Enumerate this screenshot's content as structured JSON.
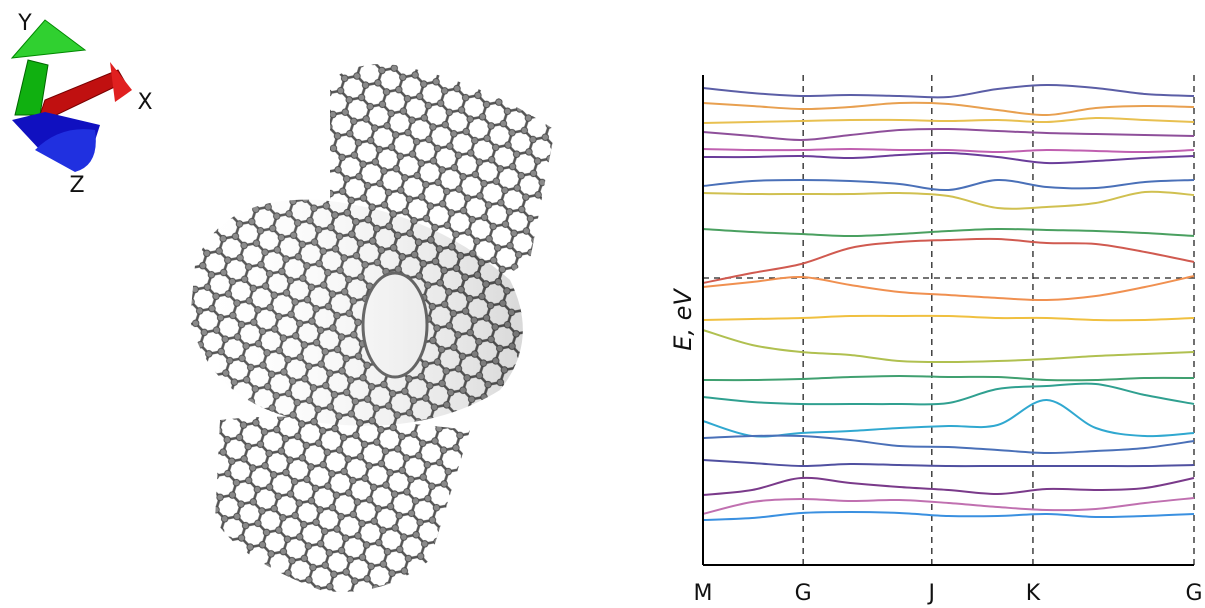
{
  "molecule": {
    "axis_labels": [
      "X",
      "Y",
      "Z"
    ]
  },
  "chart_data": {
    "type": "line",
    "y_label": "E, eV",
    "x": [
      0,
      0.1,
      0.2,
      0.3,
      0.4,
      0.5,
      0.6,
      0.7,
      0.8,
      0.9,
      1.0
    ],
    "xlim": [
      0,
      1
    ],
    "xticks": [
      {
        "value": 0,
        "label": "M"
      },
      {
        "value": 0.204,
        "label": "G"
      },
      {
        "value": 0.466,
        "label": "J"
      },
      {
        "value": 0.672,
        "label": "K"
      },
      {
        "value": 1.0,
        "label": "G"
      }
    ],
    "ylim": [
      0,
      490
    ],
    "grid": true,
    "hline": 287,
    "series": [
      {
        "color": "#5b5ea6",
        "values": [
          477,
          472,
          469,
          470,
          469,
          468,
          476,
          480,
          477,
          471,
          469
        ]
      },
      {
        "color": "#e8a050",
        "values": [
          462,
          459,
          456,
          458,
          462,
          461,
          455,
          450,
          457,
          459,
          458
        ]
      },
      {
        "color": "#e8c050",
        "values": [
          442,
          443,
          444,
          445,
          445,
          444,
          445,
          443,
          447,
          445,
          443
        ]
      },
      {
        "color": "#8e4f9a",
        "values": [
          433,
          429,
          425,
          430,
          435,
          436,
          434,
          432,
          431,
          430,
          429
        ]
      },
      {
        "color": "#c060b0",
        "values": [
          416,
          415,
          415,
          416,
          415,
          415,
          413,
          415,
          414,
          413,
          415
        ]
      },
      {
        "color": "#6a3d9a",
        "values": [
          408,
          408,
          409,
          407,
          410,
          412,
          408,
          402,
          404,
          407,
          409
        ]
      },
      {
        "color": "#4a70b8",
        "values": [
          379,
          384,
          385,
          384,
          381,
          375,
          385,
          378,
          377,
          383,
          385
        ]
      },
      {
        "color": "#d0c050",
        "values": [
          372,
          371,
          371,
          371,
          372,
          369,
          357,
          358,
          362,
          373,
          370
        ]
      },
      {
        "color": "#4aa060",
        "values": [
          336,
          333,
          331,
          329,
          331,
          334,
          336,
          335,
          334,
          332,
          329
        ]
      },
      {
        "color": "#d05a50",
        "values": [
          282,
          292,
          301,
          317,
          323,
          325,
          326,
          322,
          321,
          313,
          303
        ]
      },
      {
        "color": "#f09050",
        "values": [
          278,
          283,
          288,
          280,
          273,
          270,
          267,
          265,
          269,
          278,
          289
        ]
      },
      {
        "color": "#f0c040",
        "values": [
          245,
          246,
          247,
          249,
          249,
          249,
          247,
          247,
          245,
          245,
          247
        ]
      },
      {
        "color": "#b0c050",
        "values": [
          235,
          220,
          213,
          210,
          204,
          203,
          204,
          206,
          209,
          211,
          213
        ]
      },
      {
        "color": "#40a070",
        "values": [
          185,
          185,
          186,
          188,
          189,
          188,
          188,
          185,
          185,
          187,
          187
        ]
      },
      {
        "color": "#30a090",
        "values": [
          168,
          163,
          161,
          161,
          161,
          162,
          176,
          179,
          181,
          170,
          161
        ]
      },
      {
        "color": "#30a8d0",
        "values": [
          144,
          129,
          132,
          134,
          137,
          139,
          140,
          165,
          137,
          129,
          132
        ]
      },
      {
        "color": "#4a70b8",
        "values": [
          127,
          129,
          129,
          125,
          119,
          118,
          115,
          112,
          114,
          117,
          124
        ]
      },
      {
        "color": "#5050a0",
        "values": [
          105,
          102,
          99,
          101,
          100,
          99,
          99,
          99,
          99,
          99,
          100
        ]
      },
      {
        "color": "#7a3a8a",
        "values": [
          70,
          75,
          87,
          82,
          78,
          75,
          71,
          76,
          75,
          77,
          87
        ]
      },
      {
        "color": "#c070b0",
        "values": [
          51,
          63,
          66,
          64,
          65,
          62,
          58,
          55,
          56,
          62,
          67
        ]
      },
      {
        "color": "#3a90e0",
        "values": [
          45,
          47,
          52,
          53,
          52,
          49,
          49,
          51,
          48,
          49,
          51
        ]
      }
    ]
  }
}
